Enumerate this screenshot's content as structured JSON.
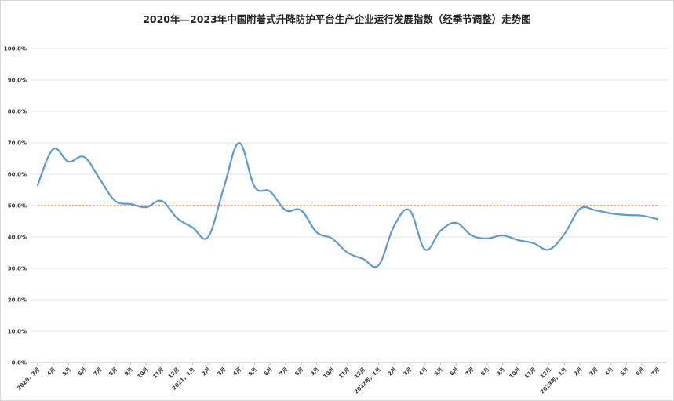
{
  "chart_data": {
    "type": "line",
    "title": "2020年—2023年中国附着式升降防护平台生产企业运行发展指数（经季节调整）走势图",
    "xlabel": "",
    "ylabel": "",
    "ylim": [
      0,
      100
    ],
    "yticks": [
      "0.0%",
      "10.0%",
      "20.0%",
      "30.0%",
      "40.0%",
      "50.0%",
      "60.0%",
      "70.0%",
      "80.0%",
      "90.0%",
      "100.0%"
    ],
    "grid": true,
    "legend": "none",
    "categories": [
      "2020，3月",
      "4月",
      "5月",
      "6月",
      "7月",
      "8月",
      "9月",
      "10月",
      "11月",
      "12月",
      "2021，1月",
      "2月",
      "3月",
      "4月",
      "5月",
      "6月",
      "7月",
      "8月",
      "9月",
      "10月",
      "11月",
      "12月",
      "2022年，1月",
      "2月",
      "3月",
      "4月",
      "5月",
      "6月",
      "7月",
      "8月",
      "9月",
      "10月",
      "11月",
      "12月",
      "2023年，1月",
      "2月",
      "3月",
      "4月",
      "5月",
      "6月",
      "7月"
    ],
    "series": [
      {
        "name": "",
        "color": "#5b9bd5",
        "values": [
          56.5,
          68,
          64,
          65.5,
          58.5,
          51.5,
          50.5,
          49.5,
          51.5,
          46,
          43,
          40,
          55.5,
          70,
          56,
          54.5,
          48.5,
          48.5,
          41.5,
          39.5,
          35,
          33,
          31,
          43.5,
          48.5,
          36,
          42,
          44.5,
          40.5,
          39.5,
          40.5,
          39,
          38,
          36,
          41,
          49,
          48.5,
          47.5,
          47,
          46.8,
          45.7
        ]
      }
    ],
    "reference_line": {
      "value": 50,
      "color": "#ed7d31"
    }
  }
}
